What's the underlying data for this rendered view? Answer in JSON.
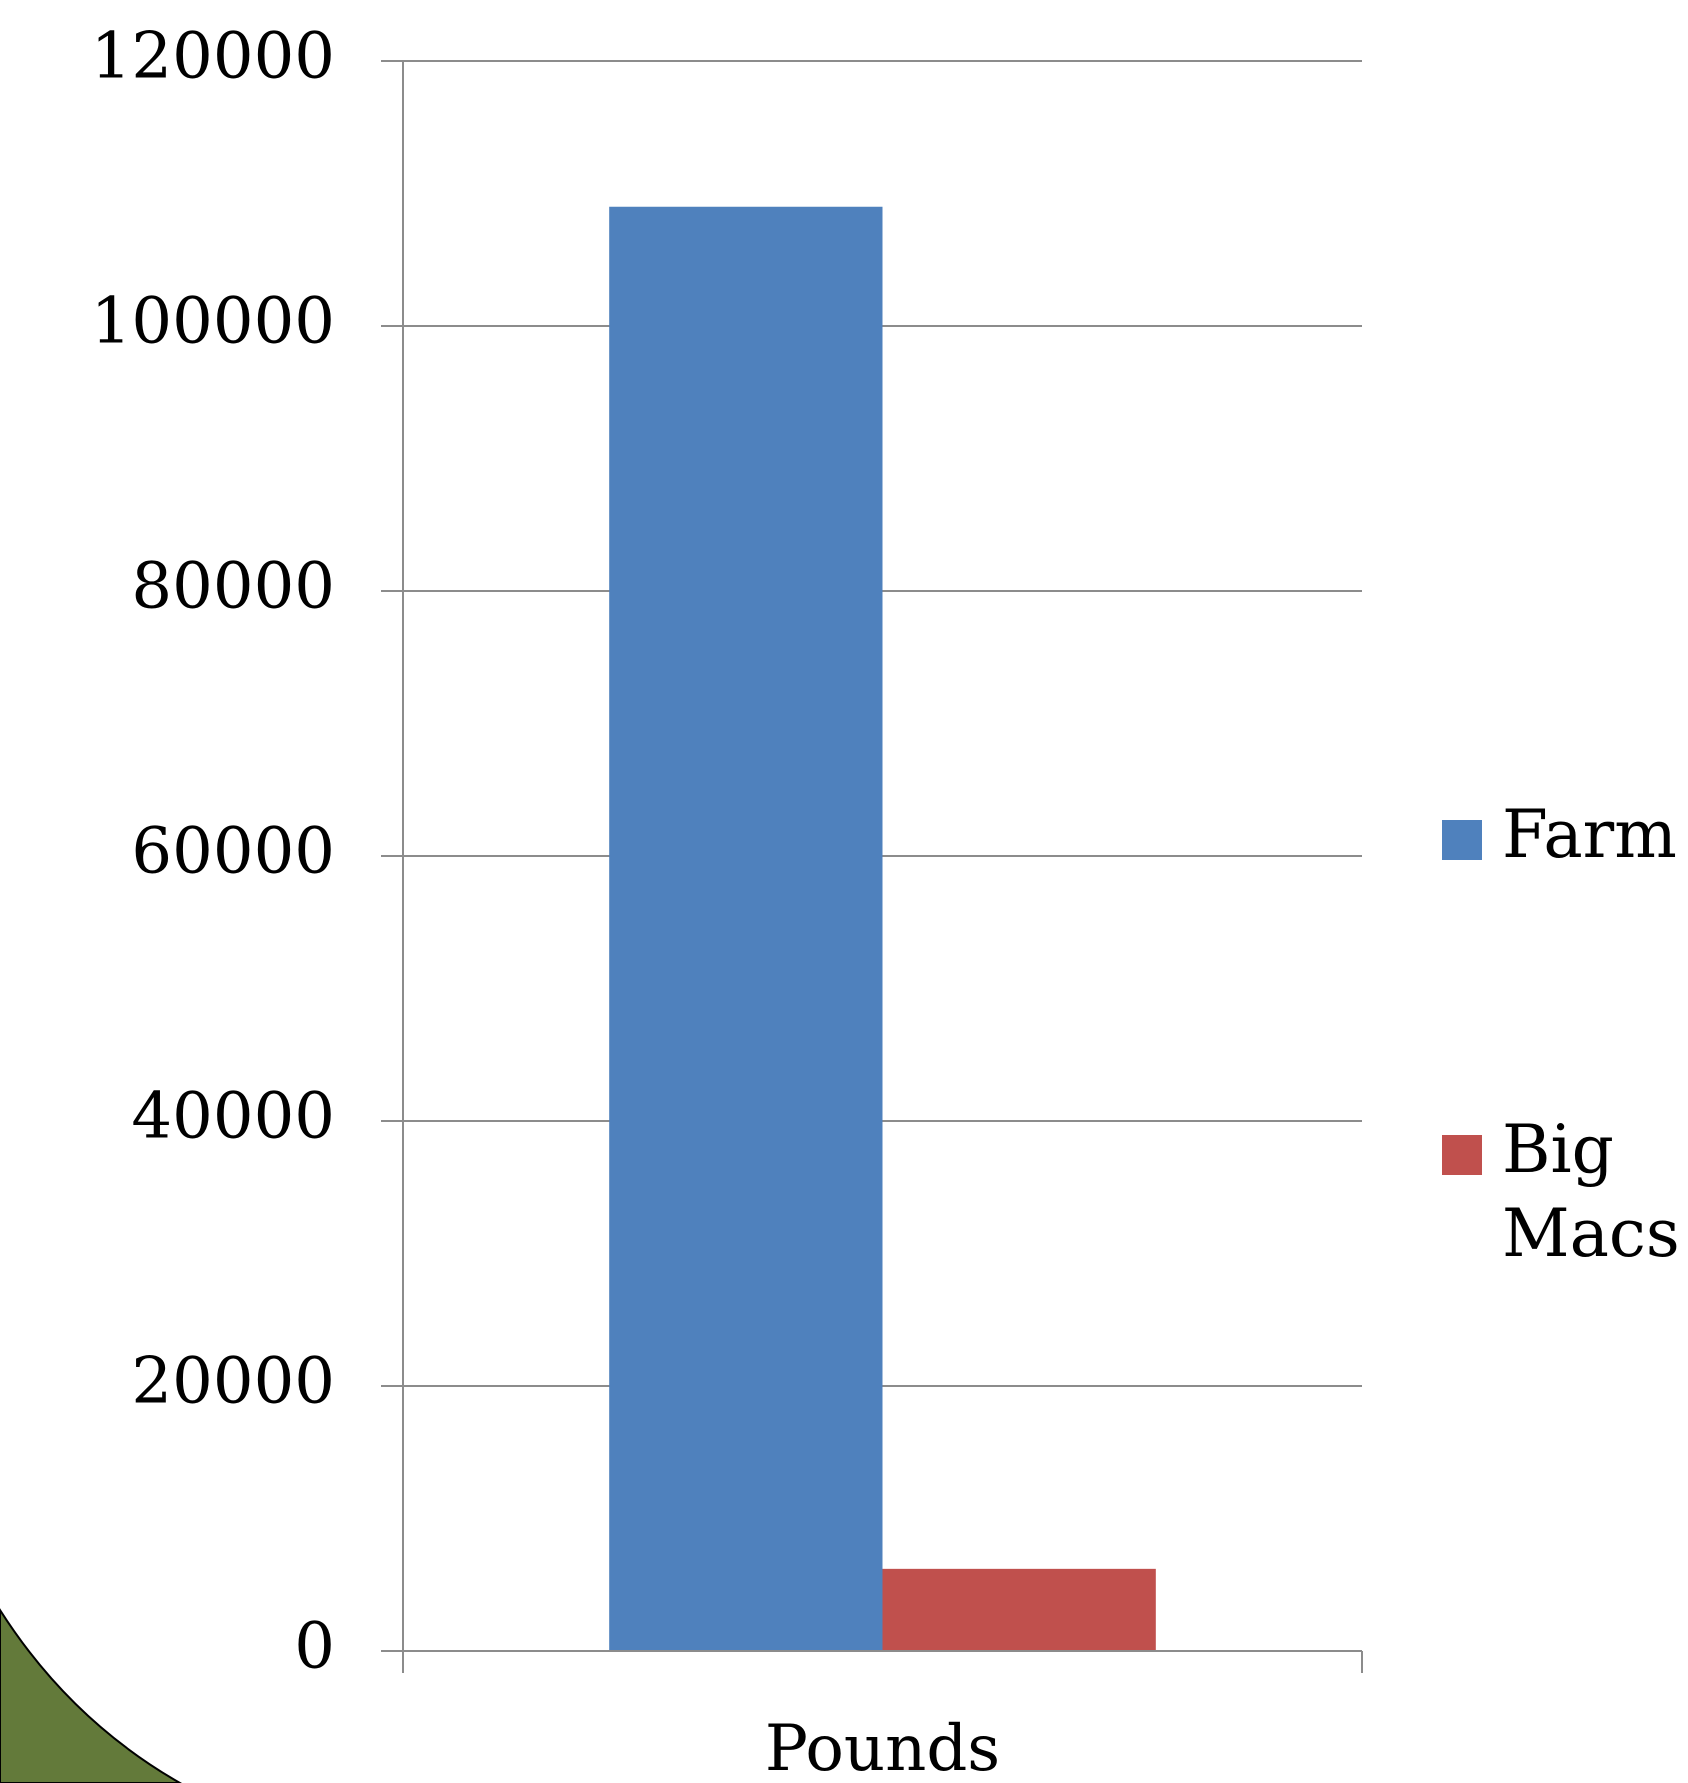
{
  "chart_data": {
    "type": "bar",
    "categories": [
      "Pounds"
    ],
    "series": [
      {
        "name": "Farm",
        "values": [
          109000
        ],
        "color": "#4f81bd"
      },
      {
        "name": "Big Macs",
        "values": [
          6200
        ],
        "color": "#c0504d"
      }
    ],
    "legend_labels": [
      [
        "Farm"
      ],
      [
        "Big",
        "Macs"
      ]
    ],
    "y_ticks": [
      "0",
      "20000",
      "40000",
      "60000",
      "80000",
      "100000",
      "120000"
    ],
    "ylim": [
      0,
      120000
    ],
    "grid": true,
    "legend_position": "right",
    "decoration_color": "#637a3a"
  }
}
